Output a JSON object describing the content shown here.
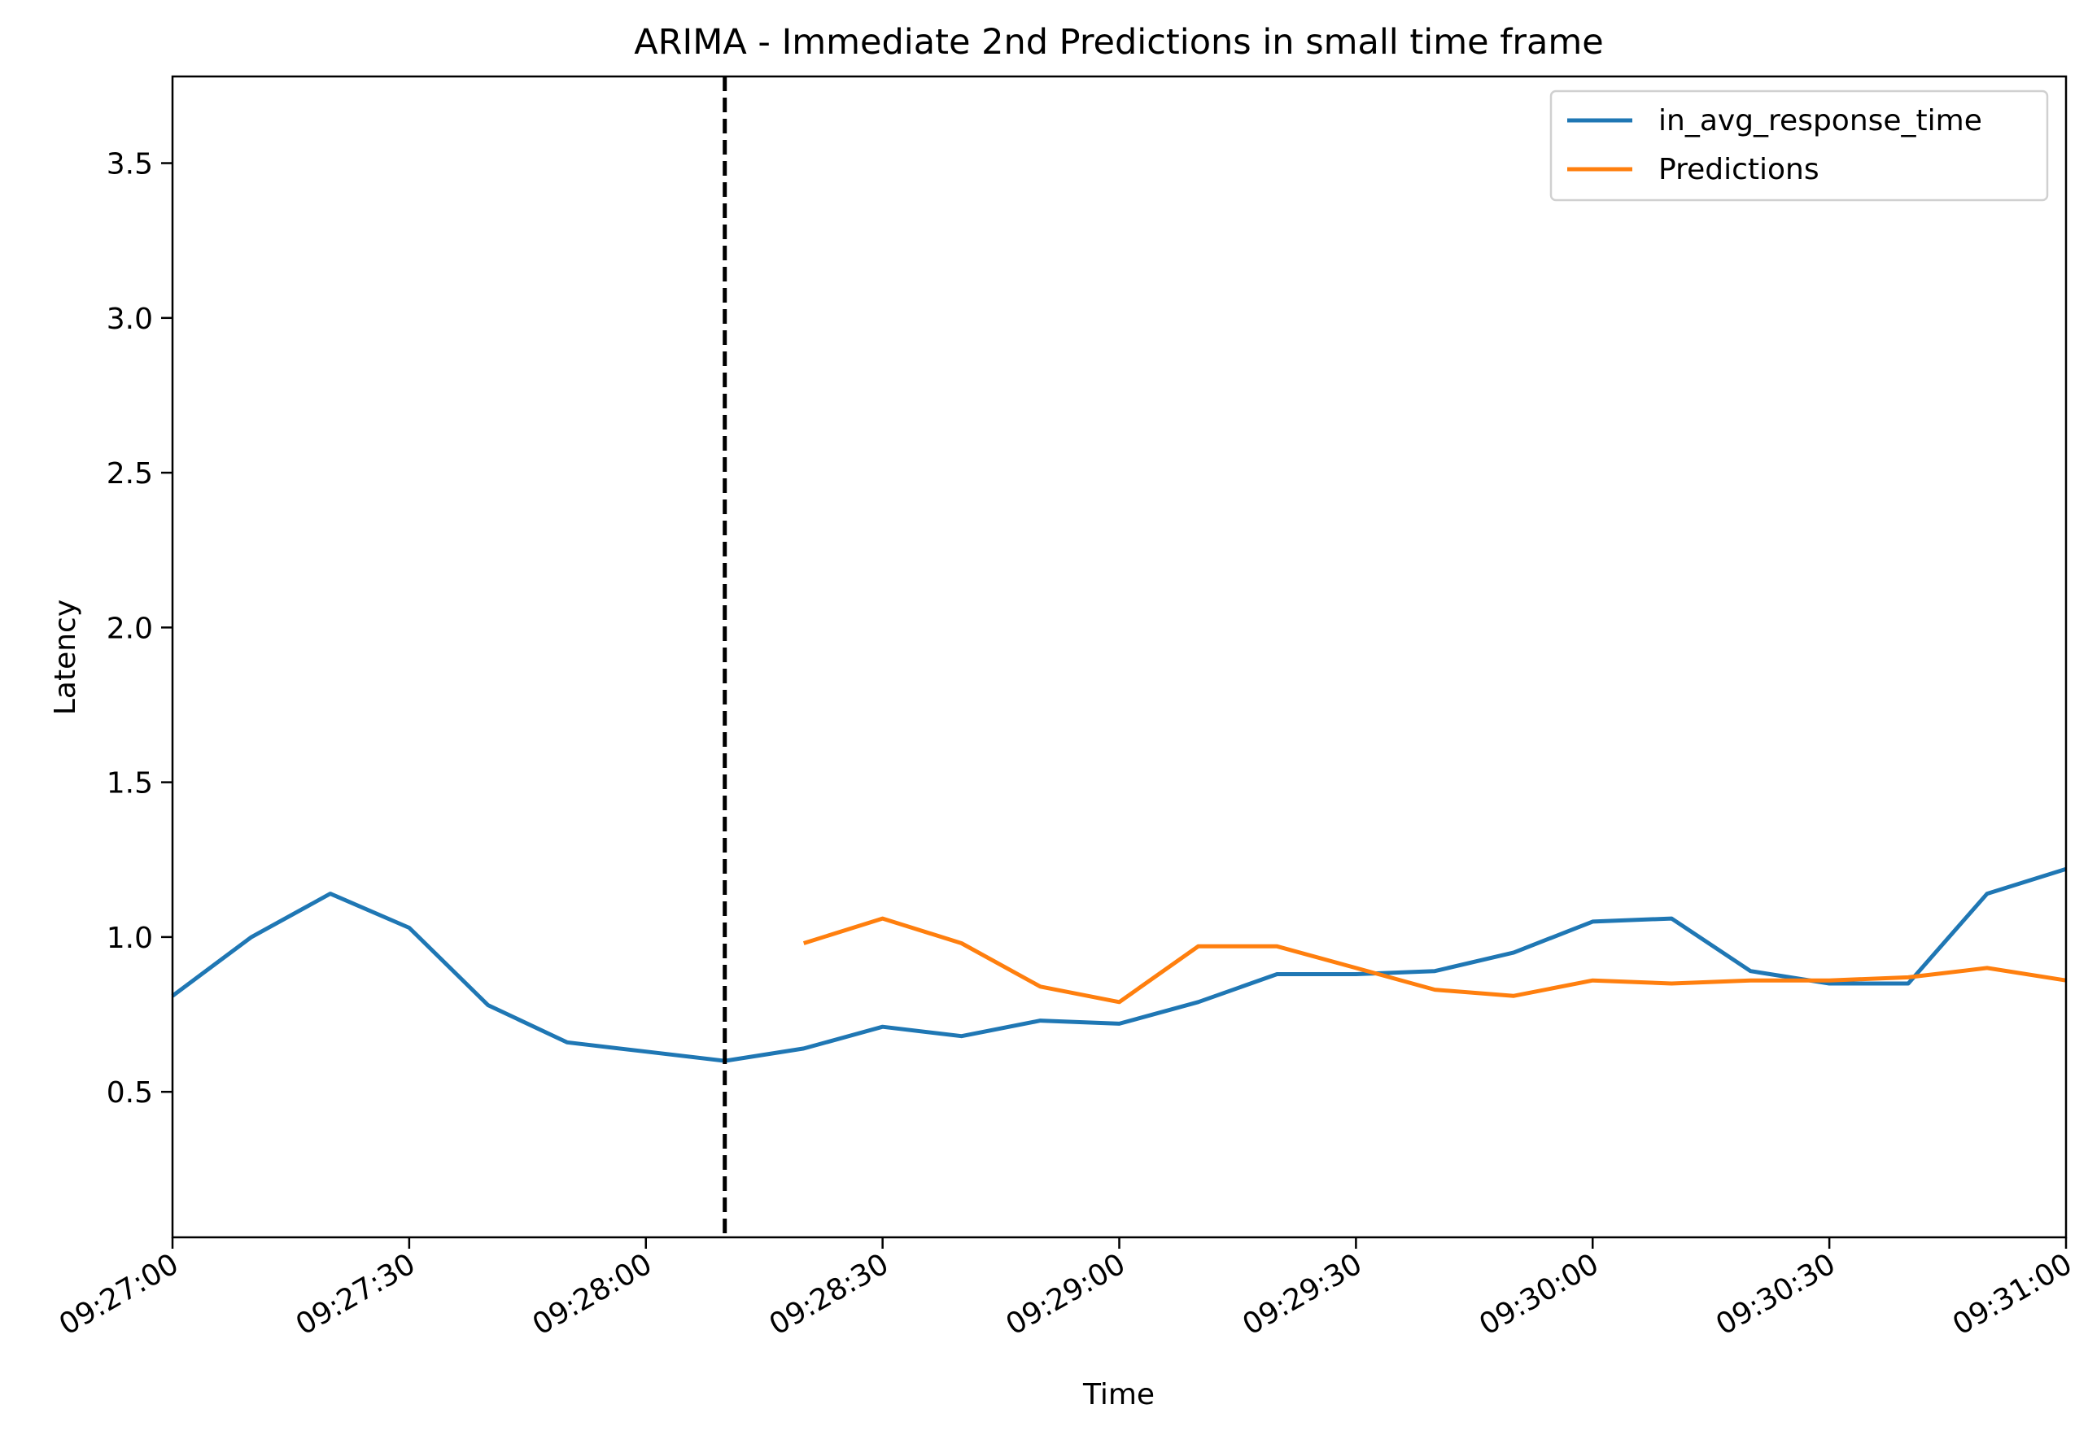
{
  "chart_data": {
    "type": "line",
    "title": "ARIMA - Immediate 2nd Predictions in small time frame",
    "xlabel": "Time",
    "ylabel": "Latency",
    "xlim": [
      "09:27:00",
      "09:31:00"
    ],
    "ylim": [
      0.03,
      3.78
    ],
    "x_ticks": [
      "09:27:00",
      "09:27:30",
      "09:28:00",
      "09:28:30",
      "09:29:00",
      "09:29:30",
      "09:30:00",
      "09:30:30",
      "09:31:00"
    ],
    "y_ticks": [
      0.5,
      1.0,
      1.5,
      2.0,
      2.5,
      3.0,
      3.5
    ],
    "y_tick_labels": [
      "0.5",
      "1.0",
      "1.5",
      "2.0",
      "2.5",
      "3.0",
      "3.5"
    ],
    "grid": false,
    "legend_position": "top-right",
    "vline": {
      "x": "09:28:10",
      "style": "dashed",
      "color": "#000000"
    },
    "series": [
      {
        "name": "in_avg_response_time",
        "color": "#1f77b4",
        "x": [
          "09:27:00",
          "09:27:10",
          "09:27:20",
          "09:27:30",
          "09:27:40",
          "09:27:50",
          "09:28:00",
          "09:28:10",
          "09:28:20",
          "09:28:30",
          "09:28:40",
          "09:28:50",
          "09:29:00",
          "09:29:10",
          "09:29:20",
          "09:29:30",
          "09:29:40",
          "09:29:50",
          "09:30:00",
          "09:30:10",
          "09:30:20",
          "09:30:30",
          "09:30:40",
          "09:30:50",
          "09:31:00"
        ],
        "values": [
          0.81,
          1.0,
          1.14,
          1.03,
          0.78,
          0.66,
          0.63,
          0.6,
          0.64,
          0.71,
          0.68,
          0.73,
          0.72,
          0.79,
          0.88,
          0.88,
          0.89,
          0.95,
          1.05,
          1.06,
          0.89,
          0.85,
          0.85,
          1.14,
          1.22
        ]
      },
      {
        "name": "Predictions",
        "color": "#ff7f0e",
        "x": [
          "09:28:20",
          "09:28:30",
          "09:28:40",
          "09:28:50",
          "09:29:00",
          "09:29:10",
          "09:29:20",
          "09:29:30",
          "09:29:40",
          "09:29:50",
          "09:30:00",
          "09:30:10",
          "09:30:20",
          "09:30:30",
          "09:30:40",
          "09:30:50",
          "09:31:00"
        ],
        "values": [
          0.98,
          1.06,
          0.98,
          0.84,
          0.79,
          0.97,
          0.97,
          0.9,
          0.83,
          0.81,
          0.86,
          0.85,
          0.86,
          0.86,
          0.87,
          0.9,
          0.86
        ]
      }
    ]
  }
}
